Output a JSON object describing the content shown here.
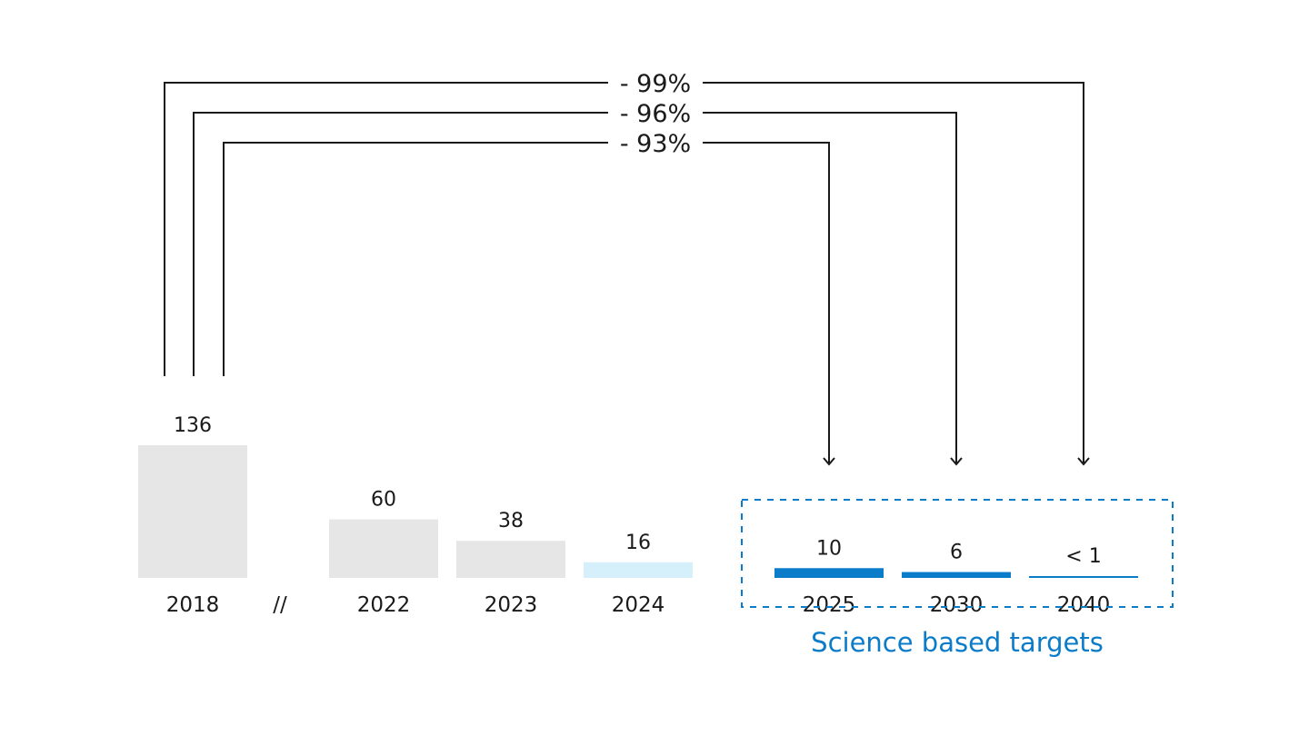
{
  "chart_data": {
    "type": "bar",
    "title": "",
    "xlabel": "",
    "ylabel": "",
    "ylim": [
      0,
      136
    ],
    "grid": false,
    "categories": [
      "2018",
      "2022",
      "2023",
      "2024",
      "2025",
      "2030",
      "2040"
    ],
    "values": [
      136,
      60,
      38,
      16,
      10,
      6,
      1
    ],
    "value_labels": [
      "136",
      "60",
      "38",
      "16",
      "10",
      "6",
      "< 1"
    ],
    "axis_break_label": "//",
    "target_group": {
      "label": "Science based targets",
      "categories": [
        "2025",
        "2030",
        "2040"
      ]
    },
    "reductions": [
      {
        "from": "2018",
        "to": "2040",
        "label": "- 99%"
      },
      {
        "from": "2018",
        "to": "2030",
        "label": "- 96%"
      },
      {
        "from": "2018",
        "to": "2025",
        "label": "- 93%"
      }
    ],
    "colors": {
      "historic_bar": "#e6e6e6",
      "current_bar": "#d6f0fb",
      "target_bar": "#0a7cc9",
      "target_text": "#0a7cc9",
      "line": "#1a1a1a"
    }
  }
}
